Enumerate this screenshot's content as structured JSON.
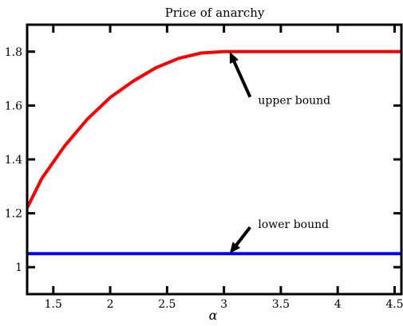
{
  "chart_data": {
    "type": "line",
    "title": "Price of anarchy",
    "xlabel": "α",
    "ylabel": "",
    "xlim": [
      1.27,
      4.56
    ],
    "ylim": [
      0.9,
      1.9
    ],
    "x_ticks": [
      1.5,
      2,
      2.5,
      3,
      3.5,
      4,
      4.5
    ],
    "x_tick_labels": [
      "1.5",
      "2",
      "2.5",
      "3",
      "3.5",
      "4",
      "4.5"
    ],
    "y_ticks": [
      1.0,
      1.2,
      1.4,
      1.6,
      1.8
    ],
    "y_tick_labels": [
      "1",
      "1.2",
      "1.4",
      "1.6",
      "1.8"
    ],
    "grid": false,
    "legend": "none",
    "series": [
      {
        "color": "#ff0000",
        "x": [
          1.27,
          1.4,
          1.6,
          1.8,
          2.0,
          2.2,
          2.4,
          2.6,
          2.8,
          3.0,
          3.05,
          3.5,
          4.0,
          4.56
        ],
        "y": [
          1.22,
          1.33,
          1.45,
          1.55,
          1.63,
          1.69,
          1.74,
          1.775,
          1.795,
          1.8,
          1.8,
          1.8,
          1.8,
          1.8
        ]
      },
      {
        "color": "#0000ff",
        "x": [
          1.27,
          4.56
        ],
        "y": [
          1.05,
          1.05
        ]
      }
    ],
    "annotations": [
      {
        "text": "upper bound",
        "point": [
          3.05,
          1.8
        ],
        "text_at": [
          3.3,
          1.62
        ]
      },
      {
        "text": "lower bound",
        "point": [
          3.05,
          1.05
        ],
        "text_at": [
          3.3,
          1.16
        ]
      }
    ]
  }
}
